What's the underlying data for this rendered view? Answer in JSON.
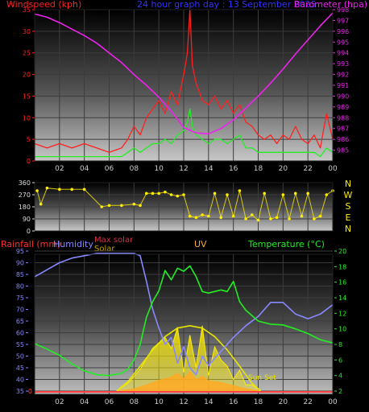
{
  "chart_data": [
    {
      "type": "line",
      "header": "24 hour graph day : 13 September 2025",
      "left_axis_label": "Windspeed (kph)",
      "right_axis_label": "Barometer (hpa)",
      "x_ticks": [
        "02",
        "04",
        "06",
        "08",
        "10",
        "12",
        "14",
        "16",
        "18",
        "20",
        "22",
        "00"
      ],
      "left_ylim": [
        0,
        35
      ],
      "left_ticks": [
        0,
        5,
        10,
        15,
        20,
        25,
        30,
        35
      ],
      "right_ylim": [
        984,
        998
      ],
      "right_ticks": [
        985,
        986,
        987,
        988,
        989,
        990,
        991,
        992,
        993,
        994,
        995,
        996,
        997,
        998
      ],
      "grid": true,
      "series": [
        {
          "key": "gust",
          "color": "#ff2020",
          "axis": "left",
          "x": [
            0,
            1,
            2,
            3,
            4,
            5,
            6,
            7,
            7.5,
            8,
            8.5,
            9,
            9.5,
            10,
            10.5,
            11,
            11.5,
            12,
            12.3,
            12.5,
            12.7,
            13,
            13.5,
            14,
            14.5,
            15,
            15.5,
            16,
            16.5,
            17,
            17.5,
            18,
            18.5,
            19,
            19.5,
            20,
            20.5,
            21,
            21.5,
            22,
            22.5,
            23,
            23.5,
            24
          ],
          "values": [
            4,
            3,
            4,
            3,
            4,
            3,
            2,
            3,
            5,
            8,
            6,
            10,
            12,
            14,
            11,
            16,
            13,
            20,
            25,
            35,
            22,
            18,
            14,
            13,
            15,
            12,
            14,
            11,
            13,
            9,
            8,
            6,
            5,
            6,
            4,
            6,
            5,
            8,
            5,
            4,
            6,
            3,
            11,
            5
          ]
        },
        {
          "key": "average",
          "color": "#22ee22",
          "axis": "left",
          "x": [
            0,
            1,
            2,
            3,
            4,
            5,
            6,
            7,
            7.5,
            8,
            8.5,
            9,
            9.5,
            10,
            10.5,
            11,
            11.5,
            12,
            12.3,
            12.5,
            12.7,
            13,
            13.5,
            14,
            14.5,
            15,
            15.5,
            16,
            16.5,
            17,
            17.5,
            18,
            18.5,
            19,
            19.5,
            20,
            20.5,
            21,
            21.5,
            22,
            22.5,
            23,
            23.5,
            24
          ],
          "values": [
            1,
            1,
            1,
            1,
            1,
            1,
            1,
            1,
            2,
            3,
            2,
            3,
            4,
            4,
            5,
            4,
            6,
            7,
            9,
            12,
            8,
            6,
            5,
            4,
            5,
            5,
            4,
            5,
            6,
            3,
            3,
            2,
            2,
            2,
            2,
            2,
            2,
            2,
            2,
            2,
            2,
            1,
            3,
            2
          ]
        },
        {
          "key": "barometer",
          "color": "#ee22ee",
          "axis": "right",
          "x": [
            0,
            1,
            2,
            3,
            4,
            5,
            6,
            7,
            8,
            9,
            10,
            11,
            12,
            13,
            14,
            15,
            16,
            17,
            18,
            19,
            20,
            21,
            22,
            23,
            24
          ],
          "values": [
            997.6,
            997.3,
            996.8,
            996.2,
            995.6,
            994.9,
            994.0,
            993.1,
            992.0,
            991.0,
            989.9,
            988.6,
            987.1,
            986.6,
            986.5,
            987.0,
            987.8,
            988.9,
            990.0,
            991.2,
            992.5,
            993.9,
            995.2,
            996.5,
            997.7
          ]
        }
      ]
    },
    {
      "type": "scatter",
      "y_ticks": [
        0,
        90,
        180,
        270,
        360
      ],
      "ylim": [
        0,
        360
      ],
      "compass": [
        "N",
        "W",
        "S",
        "E",
        "N"
      ],
      "color": "#ffee00",
      "x_ticks": [
        "02",
        "04",
        "06",
        "08",
        "10",
        "12",
        "14",
        "16",
        "18",
        "20",
        "22",
        "00"
      ],
      "x": [
        0.2,
        0.5,
        1,
        2,
        3,
        4,
        5.4,
        6,
        7,
        8,
        8.5,
        9,
        9.5,
        10,
        10.5,
        11,
        11.5,
        12,
        12.5,
        13,
        13.5,
        14,
        14.5,
        15,
        15.5,
        16,
        16.5,
        17,
        17.5,
        18,
        18.5,
        19,
        19.5,
        20,
        20.5,
        21,
        21.5,
        22,
        22.5,
        23,
        23.5,
        24
      ],
      "values": [
        300,
        200,
        320,
        310,
        310,
        310,
        180,
        190,
        190,
        200,
        190,
        280,
        280,
        280,
        290,
        270,
        260,
        270,
        110,
        100,
        120,
        110,
        280,
        100,
        270,
        110,
        300,
        90,
        120,
        80,
        280,
        90,
        100,
        270,
        90,
        280,
        110,
        280,
        90,
        110,
        270,
        300
      ]
    },
    {
      "type": "line",
      "legend": [
        "Rainfall (mm)",
        "Humidity",
        "Max solar",
        "Solar",
        "UV",
        "Temperature (°C)"
      ],
      "left_ylim": [
        35,
        95
      ],
      "left_ticks": [
        35,
        40,
        45,
        50,
        55,
        60,
        65,
        70,
        75,
        80,
        85,
        90,
        95
      ],
      "right_ylim": [
        2,
        20
      ],
      "right_ticks": [
        2,
        4,
        6,
        8,
        10,
        12,
        14,
        16,
        18,
        20
      ],
      "rain_ticks": [
        0
      ],
      "annotation": "Sun Set",
      "x_ticks": [
        "02",
        "04",
        "06",
        "08",
        "10",
        "12",
        "14",
        "16",
        "18",
        "20",
        "22",
        "00"
      ],
      "series": [
        {
          "key": "humidity",
          "name": "Humidity",
          "color": "#8888ff",
          "axis": "left",
          "x": [
            0,
            1,
            2,
            3,
            4,
            5,
            6,
            7,
            8,
            8.5,
            9,
            9.5,
            10,
            10.5,
            11,
            11.5,
            12,
            12.5,
            13,
            13.5,
            14,
            15,
            16,
            17,
            18,
            19,
            20,
            21,
            22,
            23,
            24
          ],
          "values": [
            84,
            87,
            90,
            92,
            93,
            94,
            94,
            94,
            94,
            93,
            82,
            70,
            62,
            55,
            58,
            47,
            54,
            45,
            42,
            50,
            46,
            52,
            58,
            63,
            67,
            73,
            73,
            68,
            66,
            68,
            72
          ]
        },
        {
          "key": "temperature",
          "name": "Temperature (°C)",
          "color": "#22ee22",
          "axis": "right",
          "x": [
            0,
            1,
            2,
            3,
            4,
            5,
            6,
            7,
            7.5,
            8,
            8.5,
            9,
            9.5,
            10,
            10.5,
            11,
            11.5,
            12,
            12.5,
            13,
            13.5,
            14,
            15,
            15.5,
            16,
            16.5,
            17,
            18,
            19,
            20,
            21,
            22,
            23,
            24
          ],
          "values": [
            8.1,
            7.4,
            6.6,
            5.5,
            4.6,
            4.1,
            4.0,
            4.3,
            4.8,
            6.0,
            8.0,
            11.5,
            13.5,
            14.9,
            17.5,
            16.3,
            17.8,
            17.4,
            18.1,
            16.7,
            14.8,
            14.6,
            15.0,
            14.8,
            16.1,
            13.5,
            12.4,
            11.0,
            10.6,
            10.5,
            10.0,
            9.4,
            8.6,
            8.2
          ]
        },
        {
          "key": "max_solar",
          "name": "Max solar",
          "color": "#e6e600",
          "axis": "right",
          "x": [
            6.6,
            7.5,
            8.5,
            9.5,
            10.5,
            11.5,
            12.5,
            13.5,
            14.5,
            15.5,
            16.5,
            17.5,
            18.2
          ],
          "values": [
            2,
            3.2,
            5.2,
            7.3,
            9.0,
            10.1,
            10.4,
            10.1,
            9.0,
            7.3,
            5.2,
            3.0,
            2
          ]
        },
        {
          "key": "solar",
          "name": "Solar",
          "color": "#ffee00",
          "axis": "right",
          "x": [
            6.6,
            7.5,
            8.5,
            9.5,
            10.5,
            11,
            11.5,
            12,
            12.5,
            13,
            13.5,
            14,
            14.5,
            15,
            15.5,
            16,
            16.5,
            17,
            17.5,
            18.2
          ],
          "values": [
            2,
            3,
            4.8,
            7.5,
            8.9,
            7.5,
            10.2,
            4.4,
            9.2,
            5,
            10.4,
            4,
            7.7,
            6,
            5.2,
            3.5,
            4.7,
            2.8,
            2.8,
            2
          ]
        },
        {
          "key": "uv",
          "name": "UV",
          "color": "#ffaa22",
          "axis": "right",
          "x": [
            6.6,
            8,
            9,
            10,
            11,
            11.5,
            12,
            12.5,
            13,
            13.5,
            14,
            15,
            16,
            17,
            18.2
          ],
          "values": [
            2,
            2.3,
            2.8,
            3.4,
            3.8,
            4.3,
            3.6,
            4.5,
            3.5,
            3.9,
            3.3,
            3.1,
            2.7,
            2.3,
            2
          ]
        },
        {
          "key": "rainfall",
          "name": "Rainfall (mm)",
          "color": "#ff4040",
          "axis": "rain",
          "x": [
            0,
            24
          ],
          "values": [
            0,
            0
          ]
        }
      ]
    }
  ]
}
